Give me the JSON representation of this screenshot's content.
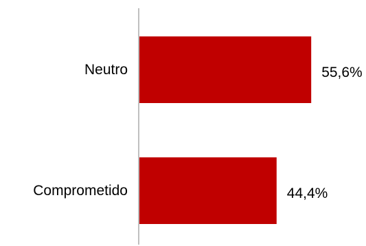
{
  "chart_data": {
    "type": "bar",
    "orientation": "horizontal",
    "categories": [
      "Neutro",
      "Comprometido"
    ],
    "values": [
      55.6,
      44.4
    ],
    "value_labels": [
      "55,6%",
      "44,4%"
    ],
    "bar_color": "#c00000",
    "axis_color": "#bfbfbf",
    "xlim": [
      0,
      60
    ],
    "grid": false,
    "legend": "none"
  }
}
